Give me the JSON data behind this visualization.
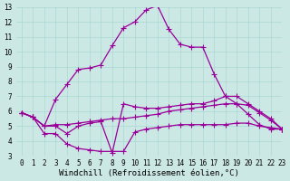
{
  "xlabel": "Windchill (Refroidissement éolien,°C)",
  "xlim": [
    -0.5,
    23
  ],
  "ylim": [
    3,
    13
  ],
  "xticks": [
    0,
    1,
    2,
    3,
    4,
    5,
    6,
    7,
    8,
    9,
    10,
    11,
    12,
    13,
    14,
    15,
    16,
    17,
    18,
    19,
    20,
    21,
    22,
    23
  ],
  "yticks": [
    3,
    4,
    5,
    6,
    7,
    8,
    9,
    10,
    11,
    12,
    13
  ],
  "bg_color": "#cce8e4",
  "grid_color": "#aad8d4",
  "line_color": "#990099",
  "line1_y": [
    5.9,
    5.6,
    5.0,
    6.8,
    7.8,
    8.8,
    8.9,
    9.1,
    10.4,
    11.6,
    12.0,
    12.8,
    13.1,
    11.5,
    10.5,
    10.3,
    10.3,
    8.5,
    7.0,
    6.5,
    5.8,
    5.1,
    4.8,
    4.8
  ],
  "line2_y": [
    5.9,
    5.6,
    5.0,
    5.0,
    4.5,
    5.0,
    5.2,
    5.3,
    3.2,
    6.5,
    6.3,
    6.2,
    6.2,
    6.3,
    6.4,
    6.5,
    6.5,
    6.7,
    7.0,
    7.0,
    6.5,
    6.0,
    5.5,
    4.8
  ],
  "line3_y": [
    5.9,
    5.6,
    5.0,
    5.1,
    5.1,
    5.2,
    5.3,
    5.4,
    5.5,
    5.5,
    5.6,
    5.7,
    5.8,
    6.0,
    6.1,
    6.2,
    6.3,
    6.4,
    6.5,
    6.5,
    6.4,
    5.9,
    5.4,
    4.8
  ],
  "line4_y": [
    5.9,
    5.6,
    4.5,
    4.5,
    3.8,
    3.5,
    3.4,
    3.3,
    3.3,
    3.3,
    4.6,
    4.8,
    4.9,
    5.0,
    5.1,
    5.1,
    5.1,
    5.1,
    5.1,
    5.2,
    5.2,
    5.0,
    4.9,
    4.8
  ],
  "x": [
    0,
    1,
    2,
    3,
    4,
    5,
    6,
    7,
    8,
    9,
    10,
    11,
    12,
    13,
    14,
    15,
    16,
    17,
    18,
    19,
    20,
    21,
    22,
    23
  ],
  "marker": "+",
  "markersize": 4,
  "linewidth": 0.9,
  "tick_fontsize": 5.5,
  "xlabel_fontsize": 6.5
}
